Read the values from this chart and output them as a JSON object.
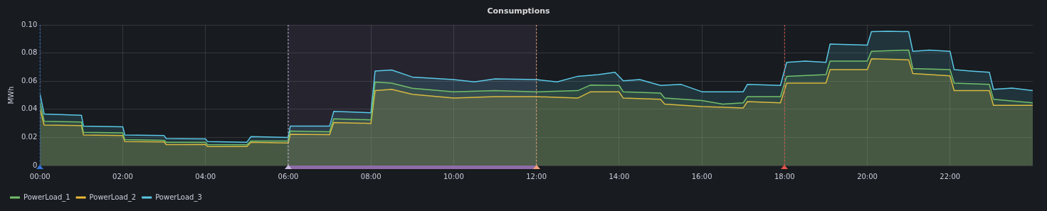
{
  "chart_data": {
    "type": "area",
    "title": "Consumptions",
    "ylabel": "MWh",
    "xlim": [
      0,
      24
    ],
    "xticks": [
      {
        "value": 0,
        "label": "00:00"
      },
      {
        "value": 2,
        "label": "02:00"
      },
      {
        "value": 4,
        "label": "04:00"
      },
      {
        "value": 6,
        "label": "06:00"
      },
      {
        "value": 8,
        "label": "08:00"
      },
      {
        "value": 10,
        "label": "10:00"
      },
      {
        "value": 12,
        "label": "12:00"
      },
      {
        "value": 14,
        "label": "14:00"
      },
      {
        "value": 16,
        "label": "16:00"
      },
      {
        "value": 18,
        "label": "18:00"
      },
      {
        "value": 20,
        "label": "20:00"
      },
      {
        "value": 22,
        "label": "22:00"
      }
    ],
    "ylim": [
      0,
      0.1
    ],
    "yticks": [
      0,
      0.02,
      0.04,
      0.06,
      0.08,
      {
        "value": 0.1,
        "label": "0.10"
      }
    ],
    "grid": true,
    "legend": "bottom left",
    "marker": "none",
    "line_style": "solid",
    "ref_lines": [
      {
        "axis": "x",
        "value": 0,
        "color": "#3274d9",
        "line_style": "dotted"
      },
      {
        "axis": "x",
        "value": 6,
        "color": "#c8b8e0",
        "line_style": "dotted"
      },
      {
        "axis": "x",
        "value": 12,
        "color": "#f2a07b",
        "line_style": "dotted"
      },
      {
        "axis": "x",
        "value": 18,
        "color": "#e0524b",
        "line_style": "dotted"
      }
    ],
    "bands": [
      {
        "axis": "x",
        "from": 6,
        "to": 12,
        "color": "#8f6ba8"
      }
    ],
    "series": [
      {
        "name": "PowerLoad_1",
        "color": "#73bf69",
        "x": [
          0,
          0.1,
          1.0,
          1.05,
          2.0,
          2.05,
          3.0,
          3.05,
          4.0,
          4.05,
          5.0,
          5.1,
          6.0,
          6.05,
          7.0,
          7.1,
          8.0,
          8.1,
          8.5,
          9,
          10,
          11,
          12,
          13,
          13.3,
          14,
          14.1,
          15,
          15.1,
          16,
          16.5,
          17,
          17.1,
          17.9,
          18.05,
          19,
          19.1,
          20,
          20.1,
          21,
          21.1,
          22,
          22.1,
          22.95,
          23.05,
          24
        ],
        "values": [
          0.045,
          0.0315,
          0.031,
          0.0236,
          0.0232,
          0.0184,
          0.018,
          0.0166,
          0.0165,
          0.0149,
          0.0148,
          0.0175,
          0.0175,
          0.0245,
          0.024,
          0.0332,
          0.0325,
          0.0594,
          0.0586,
          0.055,
          0.0524,
          0.0533,
          0.0524,
          0.0533,
          0.0572,
          0.057,
          0.0524,
          0.0516,
          0.048,
          0.0463,
          0.0437,
          0.0446,
          0.049,
          0.049,
          0.0635,
          0.0647,
          0.0743,
          0.0743,
          0.0813,
          0.0822,
          0.069,
          0.0682,
          0.0586,
          0.0577,
          0.0472,
          0.0446
        ]
      },
      {
        "name": "PowerLoad_2",
        "color": "#eab839",
        "x": [
          0,
          0.1,
          1.0,
          1.05,
          2.0,
          2.05,
          3.0,
          3.05,
          4.0,
          4.05,
          5.0,
          5.1,
          6.0,
          6.05,
          7.0,
          7.1,
          8.0,
          8.1,
          8.5,
          9,
          10,
          11,
          12,
          13,
          13.3,
          14,
          14.1,
          15,
          15.1,
          16,
          17,
          17.1,
          17.9,
          18.05,
          19,
          19.1,
          20,
          20.1,
          21,
          21.1,
          22,
          22.1,
          22.95,
          23.05,
          24
        ],
        "values": [
          0.04,
          0.0288,
          0.0285,
          0.0218,
          0.0214,
          0.017,
          0.0168,
          0.0149,
          0.015,
          0.0135,
          0.0135,
          0.0166,
          0.016,
          0.0222,
          0.022,
          0.0306,
          0.03,
          0.0533,
          0.0542,
          0.0507,
          0.048,
          0.049,
          0.049,
          0.048,
          0.0524,
          0.0524,
          0.048,
          0.0472,
          0.0437,
          0.042,
          0.041,
          0.0455,
          0.0446,
          0.0586,
          0.0586,
          0.0682,
          0.0682,
          0.076,
          0.0752,
          0.0655,
          0.0638,
          0.0533,
          0.0533,
          0.0428,
          0.0428
        ]
      },
      {
        "name": "PowerLoad_3",
        "color": "#5ac8e6",
        "x": [
          0,
          0.1,
          1.0,
          1.05,
          2.0,
          2.05,
          3.0,
          3.05,
          4.0,
          4.05,
          5.0,
          5.1,
          6.0,
          6.05,
          7.0,
          7.1,
          8.0,
          8.1,
          8.5,
          9,
          10,
          10.5,
          11,
          12,
          12.5,
          13,
          13.5,
          13.9,
          14.1,
          14.5,
          15,
          15.5,
          16,
          16.5,
          17,
          17.1,
          17.9,
          18.05,
          18.5,
          19,
          19.1,
          20,
          20.1,
          20.5,
          21,
          21.1,
          21.5,
          22,
          22.1,
          22.5,
          22.95,
          23.05,
          23.5,
          24
        ],
        "values": [
          0.0507,
          0.0367,
          0.0358,
          0.028,
          0.0276,
          0.0218,
          0.0213,
          0.0192,
          0.019,
          0.017,
          0.0166,
          0.0206,
          0.02,
          0.028,
          0.028,
          0.0385,
          0.0376,
          0.0673,
          0.068,
          0.063,
          0.0612,
          0.0595,
          0.0617,
          0.0612,
          0.0595,
          0.0635,
          0.0647,
          0.0664,
          0.0603,
          0.0612,
          0.057,
          0.0577,
          0.0525,
          0.0525,
          0.0525,
          0.0577,
          0.057,
          0.0734,
          0.0743,
          0.0734,
          0.0865,
          0.0857,
          0.0953,
          0.0956,
          0.0953,
          0.0813,
          0.0822,
          0.0813,
          0.0682,
          0.0673,
          0.0664,
          0.0542,
          0.0551,
          0.0533
        ]
      }
    ]
  }
}
